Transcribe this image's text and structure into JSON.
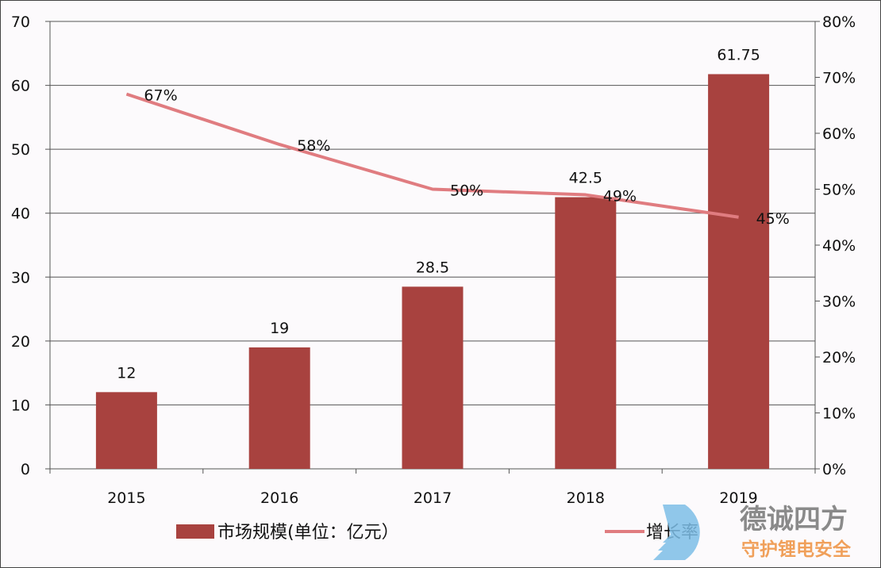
{
  "chart_data": {
    "type": "bar+line",
    "categories": [
      "2015",
      "2016",
      "2017",
      "2018",
      "2019"
    ],
    "series": [
      {
        "name": "市场规模(单位：亿元）",
        "type": "bar",
        "axis": "left",
        "values": [
          12,
          19,
          28.5,
          42.5,
          61.75
        ],
        "labels": [
          "12",
          "19",
          "28.5",
          "42.5",
          "61.75"
        ],
        "color": "#a8423f"
      },
      {
        "name": "增长率",
        "type": "line",
        "axis": "right",
        "values": [
          67,
          58,
          50,
          49,
          45
        ],
        "labels": [
          "67%",
          "58%",
          "50%",
          "49%",
          "45%"
        ],
        "color": "#e07c80"
      }
    ],
    "left_axis": {
      "ylim": [
        0,
        70
      ],
      "ticks": [
        "0",
        "10",
        "20",
        "30",
        "40",
        "50",
        "60",
        "70"
      ]
    },
    "right_axis": {
      "ylim": [
        0,
        80
      ],
      "ticks": [
        "0%",
        "10%",
        "20%",
        "30%",
        "40%",
        "50%",
        "60%",
        "70%",
        "80%"
      ]
    },
    "grid": true,
    "legend": "bottom"
  },
  "watermark": {
    "title": "德诚四方",
    "subtitle": "守护锂电安全"
  }
}
